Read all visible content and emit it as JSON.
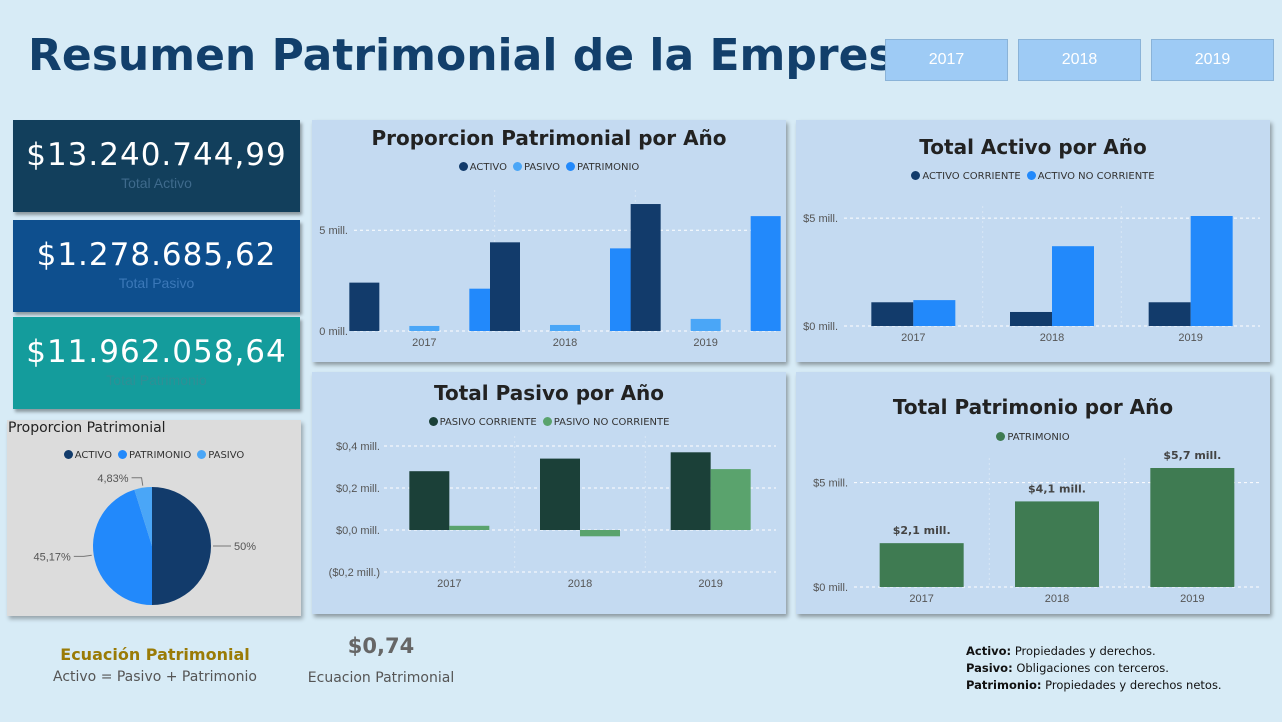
{
  "title": "Resumen Patrimonial de la Empresa",
  "year_buttons": [
    "2017",
    "2018",
    "2019"
  ],
  "kpis": [
    {
      "value": "$13.240.744,99",
      "label": "Total Activo",
      "bg": "#123f5c",
      "label_color": "#3e6a8c"
    },
    {
      "value": "$1.278.685,62",
      "label": "Total Pasivo",
      "bg": "#0e4f8e",
      "label_color": "#3b78b8"
    },
    {
      "value": "$11.962.058,64",
      "label": "Total Patrimonio",
      "bg": "#149c9c",
      "label_color": "#2f8f95"
    }
  ],
  "pie": {
    "title": "Proporcion Patrimonial",
    "legend": [
      {
        "name": "ACTIVO",
        "color": "#123b6b"
      },
      {
        "name": "PATRIMONIO",
        "color": "#2289fb"
      },
      {
        "name": "PASIVO",
        "color": "#4aa6f7"
      }
    ],
    "slices": [
      {
        "name": "ACTIVO",
        "percent": 50,
        "label": "50%",
        "color": "#123b6b"
      },
      {
        "name": "PATRIMONIO",
        "percent": 45.17,
        "label": "45,17%",
        "color": "#2289fb"
      },
      {
        "name": "PASIVO",
        "percent": 4.83,
        "label": "4,83%",
        "color": "#4aa6f7"
      }
    ]
  },
  "chart_data": [
    {
      "id": "proporcion",
      "type": "bar",
      "title": "Proporcion Patrimonial por Año",
      "categories": [
        "2017",
        "2018",
        "2019"
      ],
      "series": [
        {
          "name": "ACTIVO",
          "color": "#123b6b",
          "values": [
            2.4,
            4.4,
            6.3
          ]
        },
        {
          "name": "PASIVO",
          "color": "#4aa6f7",
          "values": [
            0.25,
            0.3,
            0.6
          ]
        },
        {
          "name": "PATRIMONIO",
          "color": "#2289fb",
          "values": [
            2.1,
            4.1,
            5.7
          ]
        }
      ],
      "ylim": [
        0,
        6.5
      ],
      "yticks": [
        {
          "value": 0,
          "label": "0 mill."
        },
        {
          "value": 5,
          "label": "5 mill."
        }
      ]
    },
    {
      "id": "activo",
      "type": "bar",
      "title": "Total Activo por Año",
      "categories": [
        "2017",
        "2018",
        "2019"
      ],
      "series": [
        {
          "name": "ACTIVO CORRIENTE",
          "color": "#123b6b",
          "values": [
            1.1,
            0.65,
            1.1
          ]
        },
        {
          "name": "ACTIVO NO CORRIENTE",
          "color": "#2289fb",
          "values": [
            1.2,
            3.7,
            5.1
          ]
        }
      ],
      "ylim": [
        0,
        5.1
      ],
      "yticks": [
        {
          "value": 0,
          "label": "$0 mill."
        },
        {
          "value": 5,
          "label": "$5 mill."
        }
      ]
    },
    {
      "id": "pasivo",
      "type": "bar",
      "title": "Total Pasivo por Año",
      "categories": [
        "2017",
        "2018",
        "2019"
      ],
      "series": [
        {
          "name": "PASIVO CORRIENTE",
          "color": "#1b4038",
          "values": [
            0.28,
            0.34,
            0.37
          ]
        },
        {
          "name": "PASIVO NO CORRIENTE",
          "color": "#5aa36d",
          "values": [
            0.02,
            -0.03,
            0.29
          ]
        }
      ],
      "ylim": [
        -0.2,
        0.4
      ],
      "yticks": [
        {
          "value": -0.2,
          "label": "($0,2 mill.)"
        },
        {
          "value": 0,
          "label": "$0,0 mill."
        },
        {
          "value": 0.2,
          "label": "$0,2 mill."
        },
        {
          "value": 0.4,
          "label": "$0,4 mill."
        }
      ]
    },
    {
      "id": "patrimonio",
      "type": "bar",
      "title": "Total Patrimonio por Año",
      "categories": [
        "2017",
        "2018",
        "2019"
      ],
      "series": [
        {
          "name": "PATRIMONIO",
          "color": "#3f7b52",
          "values": [
            2.1,
            4.1,
            5.7
          ],
          "labels": [
            "$2,1 mill.",
            "$4,1 mill.",
            "$5,7 mill."
          ]
        }
      ],
      "ylim": [
        0,
        5.7
      ],
      "yticks": [
        {
          "value": 0,
          "label": "$0 mill."
        },
        {
          "value": 5,
          "label": "$5 mill."
        }
      ]
    }
  ],
  "equation": {
    "title": "Ecuación Patrimonial",
    "formula": "Activo = Pasivo + Patrimonio"
  },
  "ratio": {
    "value": "$0,74",
    "label": "Ecuacion Patrimonial"
  },
  "definitions": [
    {
      "term": "Activo:",
      "text": "Propiedades y derechos."
    },
    {
      "term": "Pasivo:",
      "text": "Obligaciones con terceros."
    },
    {
      "term": "Patrimonio:",
      "text": "Propiedades y derechos netos."
    }
  ]
}
